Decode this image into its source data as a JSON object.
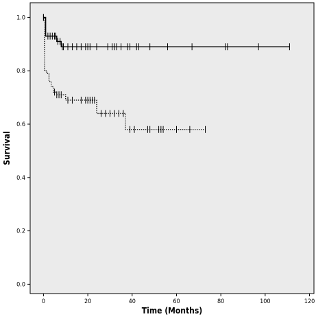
{
  "chart_data": {
    "type": "line",
    "chart_subtype": "kaplan-meier",
    "xlabel": "Time (Months)",
    "ylabel": "Survival",
    "xlim": [
      -6,
      122
    ],
    "ylim": [
      -0.035,
      1.055
    ],
    "xticks": [
      0,
      20,
      40,
      60,
      80,
      100,
      120
    ],
    "yticks": [
      0.0,
      0.2,
      0.4,
      0.6,
      0.8,
      1.0
    ],
    "ytick_labels": [
      "0.0",
      "0.2",
      "0.4",
      "0.6",
      "0.8",
      "1.0"
    ],
    "grid": false,
    "background_color": "#ebebeb",
    "series": [
      {
        "style": "solid",
        "color": "#000000",
        "steps": [
          [
            0,
            1.0
          ],
          [
            1,
            0.93
          ],
          [
            6,
            0.91
          ],
          [
            8,
            0.89
          ],
          [
            111,
            0.89
          ]
        ],
        "censored": [
          0,
          2,
          3,
          4,
          5,
          5.5,
          6.5,
          7.5,
          8.5,
          9,
          11,
          13,
          15,
          17,
          19,
          20,
          21,
          24,
          29,
          31,
          32,
          33,
          35,
          38,
          39,
          42,
          43,
          48,
          56,
          67,
          82,
          83,
          97,
          111
        ]
      },
      {
        "style": "dotted",
        "color": "#000000",
        "steps": [
          [
            0,
            1.0
          ],
          [
            0.5,
            0.8
          ],
          [
            1.5,
            0.79
          ],
          [
            2.5,
            0.76
          ],
          [
            3.5,
            0.74
          ],
          [
            4.5,
            0.72
          ],
          [
            6,
            0.71
          ],
          [
            10,
            0.69
          ],
          [
            24,
            0.64
          ],
          [
            37,
            0.58
          ],
          [
            73,
            0.58
          ]
        ],
        "censored": [
          0,
          5,
          6,
          7,
          8,
          11,
          13,
          17,
          19,
          20,
          21,
          22,
          23,
          26,
          28,
          30,
          32,
          34,
          36,
          39,
          41,
          47,
          48,
          52,
          53,
          54,
          60,
          66,
          73
        ]
      }
    ]
  }
}
